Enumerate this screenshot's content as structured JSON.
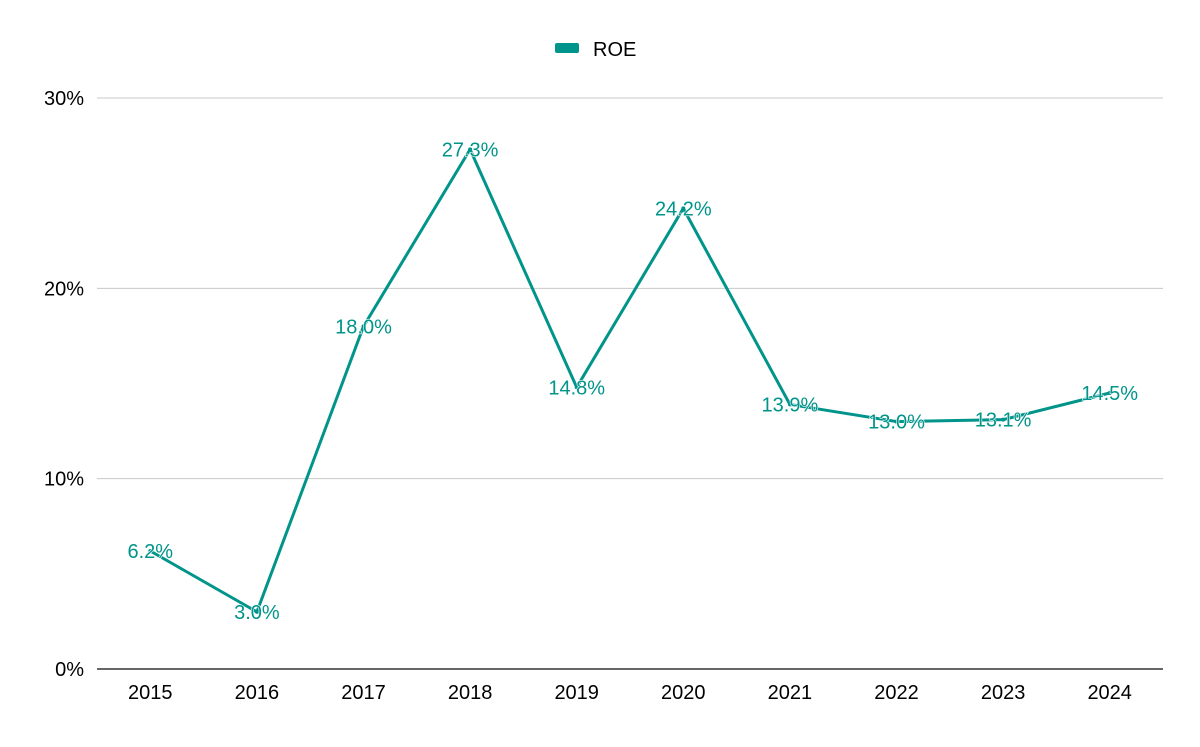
{
  "chart_data": {
    "type": "line",
    "title": "",
    "xlabel": "",
    "ylabel": "",
    "categories": [
      "2015",
      "2016",
      "2017",
      "2018",
      "2019",
      "2020",
      "2021",
      "2022",
      "2023",
      "2024"
    ],
    "series": [
      {
        "name": "ROE",
        "values": [
          6.2,
          3.0,
          18.0,
          27.3,
          14.8,
          24.2,
          13.9,
          13.0,
          13.1,
          14.5
        ],
        "labels": [
          "6.2%",
          "3.0%",
          "18.0%",
          "27.3%",
          "14.8%",
          "24.2%",
          "13.9%",
          "13.0%",
          "13.1%",
          "14.5%"
        ],
        "color": "#00948a"
      }
    ],
    "y_ticks": [
      0,
      10,
      20,
      30
    ],
    "y_tick_labels": [
      "0%",
      "10%",
      "20%",
      "30%"
    ],
    "ylim": [
      0,
      30
    ],
    "grid": true,
    "legend_position": "top-center"
  }
}
